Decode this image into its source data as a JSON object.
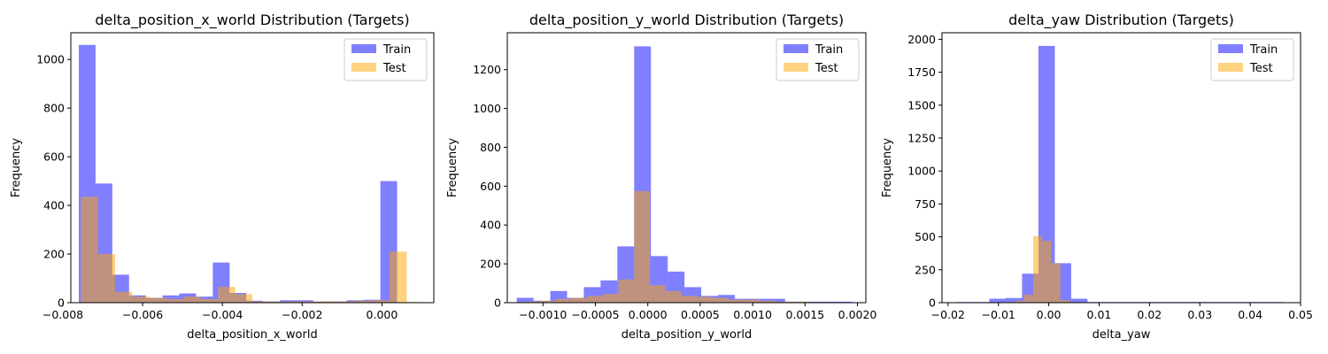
{
  "chart_data": [
    {
      "type": "histogram",
      "title": "delta_position_x_world Distribution (Targets)",
      "xlabel": "delta_position_x_world",
      "ylabel": "Frequency",
      "xlim": [
        -0.0078,
        0.0013
      ],
      "ylim": [
        0,
        1110
      ],
      "xticks": [
        -0.008,
        -0.006,
        -0.004,
        -0.002,
        0.0
      ],
      "xtick_labels": [
        "−0.008",
        "−0.006",
        "−0.004",
        "−0.002",
        "0.000"
      ],
      "yticks": [
        0,
        200,
        400,
        600,
        800,
        1000
      ],
      "ytick_labels": [
        "0",
        "200",
        "400",
        "600",
        "800",
        "1000"
      ],
      "legend_position": "top-right",
      "series": [
        {
          "name": "Train",
          "color": "#0000ff",
          "bin_edges": [
            -0.0076,
            -0.00718,
            -0.00676,
            -0.00634,
            -0.00592,
            -0.0055,
            -0.00508,
            -0.00466,
            -0.00424,
            -0.00382,
            -0.0034,
            -0.00298,
            -0.00256,
            -0.00214,
            -0.00172,
            -0.0013,
            -0.00088,
            -0.00046,
            -4e-05,
            0.00038,
            0.0008
          ],
          "counts": [
            1060,
            490,
            115,
            30,
            20,
            30,
            38,
            25,
            165,
            40,
            8,
            5,
            10,
            10,
            5,
            5,
            10,
            12,
            500,
            2
          ]
        },
        {
          "name": "Test",
          "color": "#ffa500",
          "bin_edges": [
            -0.00755,
            -0.00712,
            -0.00669,
            -0.00626,
            -0.00583,
            -0.0054,
            -0.00497,
            -0.00454,
            -0.00411,
            -0.00368,
            -0.00325,
            -0.00282,
            -0.00239,
            -0.00196,
            -0.00153,
            -0.0011,
            -0.00067,
            -0.00024,
            0.00019,
            0.00062,
            0.00105
          ],
          "counts": [
            435,
            200,
            45,
            25,
            20,
            15,
            25,
            15,
            65,
            35,
            5,
            4,
            5,
            5,
            5,
            5,
            8,
            10,
            210,
            3
          ]
        }
      ]
    },
    {
      "type": "histogram",
      "title": "delta_position_y_world Distribution (Targets)",
      "xlabel": "delta_position_y_world",
      "ylabel": "Frequency",
      "xlim": [
        -0.00134,
        0.00208
      ],
      "ylim": [
        0,
        1390
      ],
      "xticks": [
        -0.001,
        -0.0005,
        0.0,
        0.0005,
        0.001,
        0.0015,
        0.002
      ],
      "xtick_labels": [
        "−0.0010",
        "−0.0005",
        "0.0000",
        "0.0005",
        "0.0010",
        "0.0015",
        "0.0020"
      ],
      "yticks": [
        0,
        200,
        400,
        600,
        800,
        1000,
        1200
      ],
      "ytick_labels": [
        "0",
        "200",
        "400",
        "600",
        "800",
        "1000",
        "1200"
      ],
      "legend_position": "top-right",
      "series": [
        {
          "name": "Train",
          "color": "#0000ff",
          "bin_edges": [
            -0.00125,
            -0.00109,
            -0.00093,
            -0.00077,
            -0.00061,
            -0.00045,
            -0.00029,
            -0.00013,
            3e-05,
            0.00019,
            0.00035,
            0.00051,
            0.00067,
            0.00083,
            0.00099,
            0.00115,
            0.00131,
            0.00147,
            0.00163,
            0.00179,
            0.00195
          ],
          "counts": [
            25,
            10,
            60,
            25,
            80,
            115,
            290,
            1320,
            240,
            160,
            80,
            35,
            40,
            20,
            20,
            20,
            5,
            5,
            5,
            5
          ]
        },
        {
          "name": "Test",
          "color": "#ffa500",
          "bin_edges": [
            -0.00118,
            -0.00103,
            -0.00088,
            -0.00073,
            -0.00058,
            -0.00043,
            -0.00028,
            -0.00013,
            2e-05,
            0.00017,
            0.00032,
            0.00047,
            0.00062,
            0.00077,
            0.00092,
            0.00107,
            0.00122,
            0.00137,
            0.00152,
            0.00167,
            0.00182
          ],
          "counts": [
            5,
            10,
            20,
            25,
            35,
            45,
            120,
            575,
            90,
            60,
            35,
            30,
            25,
            15,
            15,
            10,
            5,
            5,
            3,
            2
          ]
        }
      ]
    },
    {
      "type": "histogram",
      "title": "delta_yaw Distribution (Targets)",
      "xlabel": "delta_yaw",
      "ylabel": "Frequency",
      "xlim": [
        -0.0212,
        0.05
      ],
      "ylim": [
        0,
        2050
      ],
      "xticks": [
        -0.02,
        -0.01,
        0.0,
        0.01,
        0.02,
        0.03,
        0.04,
        0.05
      ],
      "xtick_labels": [
        "−0.02",
        "−0.01",
        "0.00",
        "0.01",
        "0.02",
        "0.03",
        "0.04",
        "0.05"
      ],
      "yticks": [
        0,
        250,
        500,
        750,
        1000,
        1250,
        1500,
        1750,
        2000
      ],
      "ytick_labels": [
        "0",
        "250",
        "500",
        "750",
        "1000",
        "1250",
        "1500",
        "1750",
        "2000"
      ],
      "legend_position": "top-right",
      "series": [
        {
          "name": "Train",
          "color": "#0000ff",
          "bin_edges": [
            -0.0183,
            -0.01505,
            -0.0118,
            -0.00855,
            -0.0053,
            -0.00205,
            0.0012,
            0.00445,
            0.0077,
            0.01095,
            0.0142,
            0.01745,
            0.0207,
            0.02395,
            0.0272,
            0.03045,
            0.0337,
            0.03695,
            0.0402,
            0.04345,
            0.0467
          ],
          "counts": [
            5,
            5,
            30,
            35,
            220,
            1950,
            300,
            30,
            5,
            5,
            5,
            5,
            5,
            5,
            5,
            5,
            5,
            5,
            5,
            5
          ]
        },
        {
          "name": "Test",
          "color": "#ffa500",
          "bin_edges": [
            -0.0085,
            -0.0067,
            -0.0049,
            -0.0031,
            -0.0013,
            0.0005,
            0.0023,
            0.0041,
            0.0059,
            0.0077,
            0.0095,
            0.0113,
            0.0131,
            0.0149,
            0.0167,
            0.0185,
            0.0203,
            0.0221,
            0.0239,
            0.0257,
            0.0275
          ],
          "counts": [
            5,
            15,
            60,
            505,
            470,
            300,
            20,
            5,
            3,
            3,
            2,
            2,
            2,
            2,
            2,
            2,
            2,
            2,
            2,
            2
          ]
        }
      ]
    }
  ]
}
